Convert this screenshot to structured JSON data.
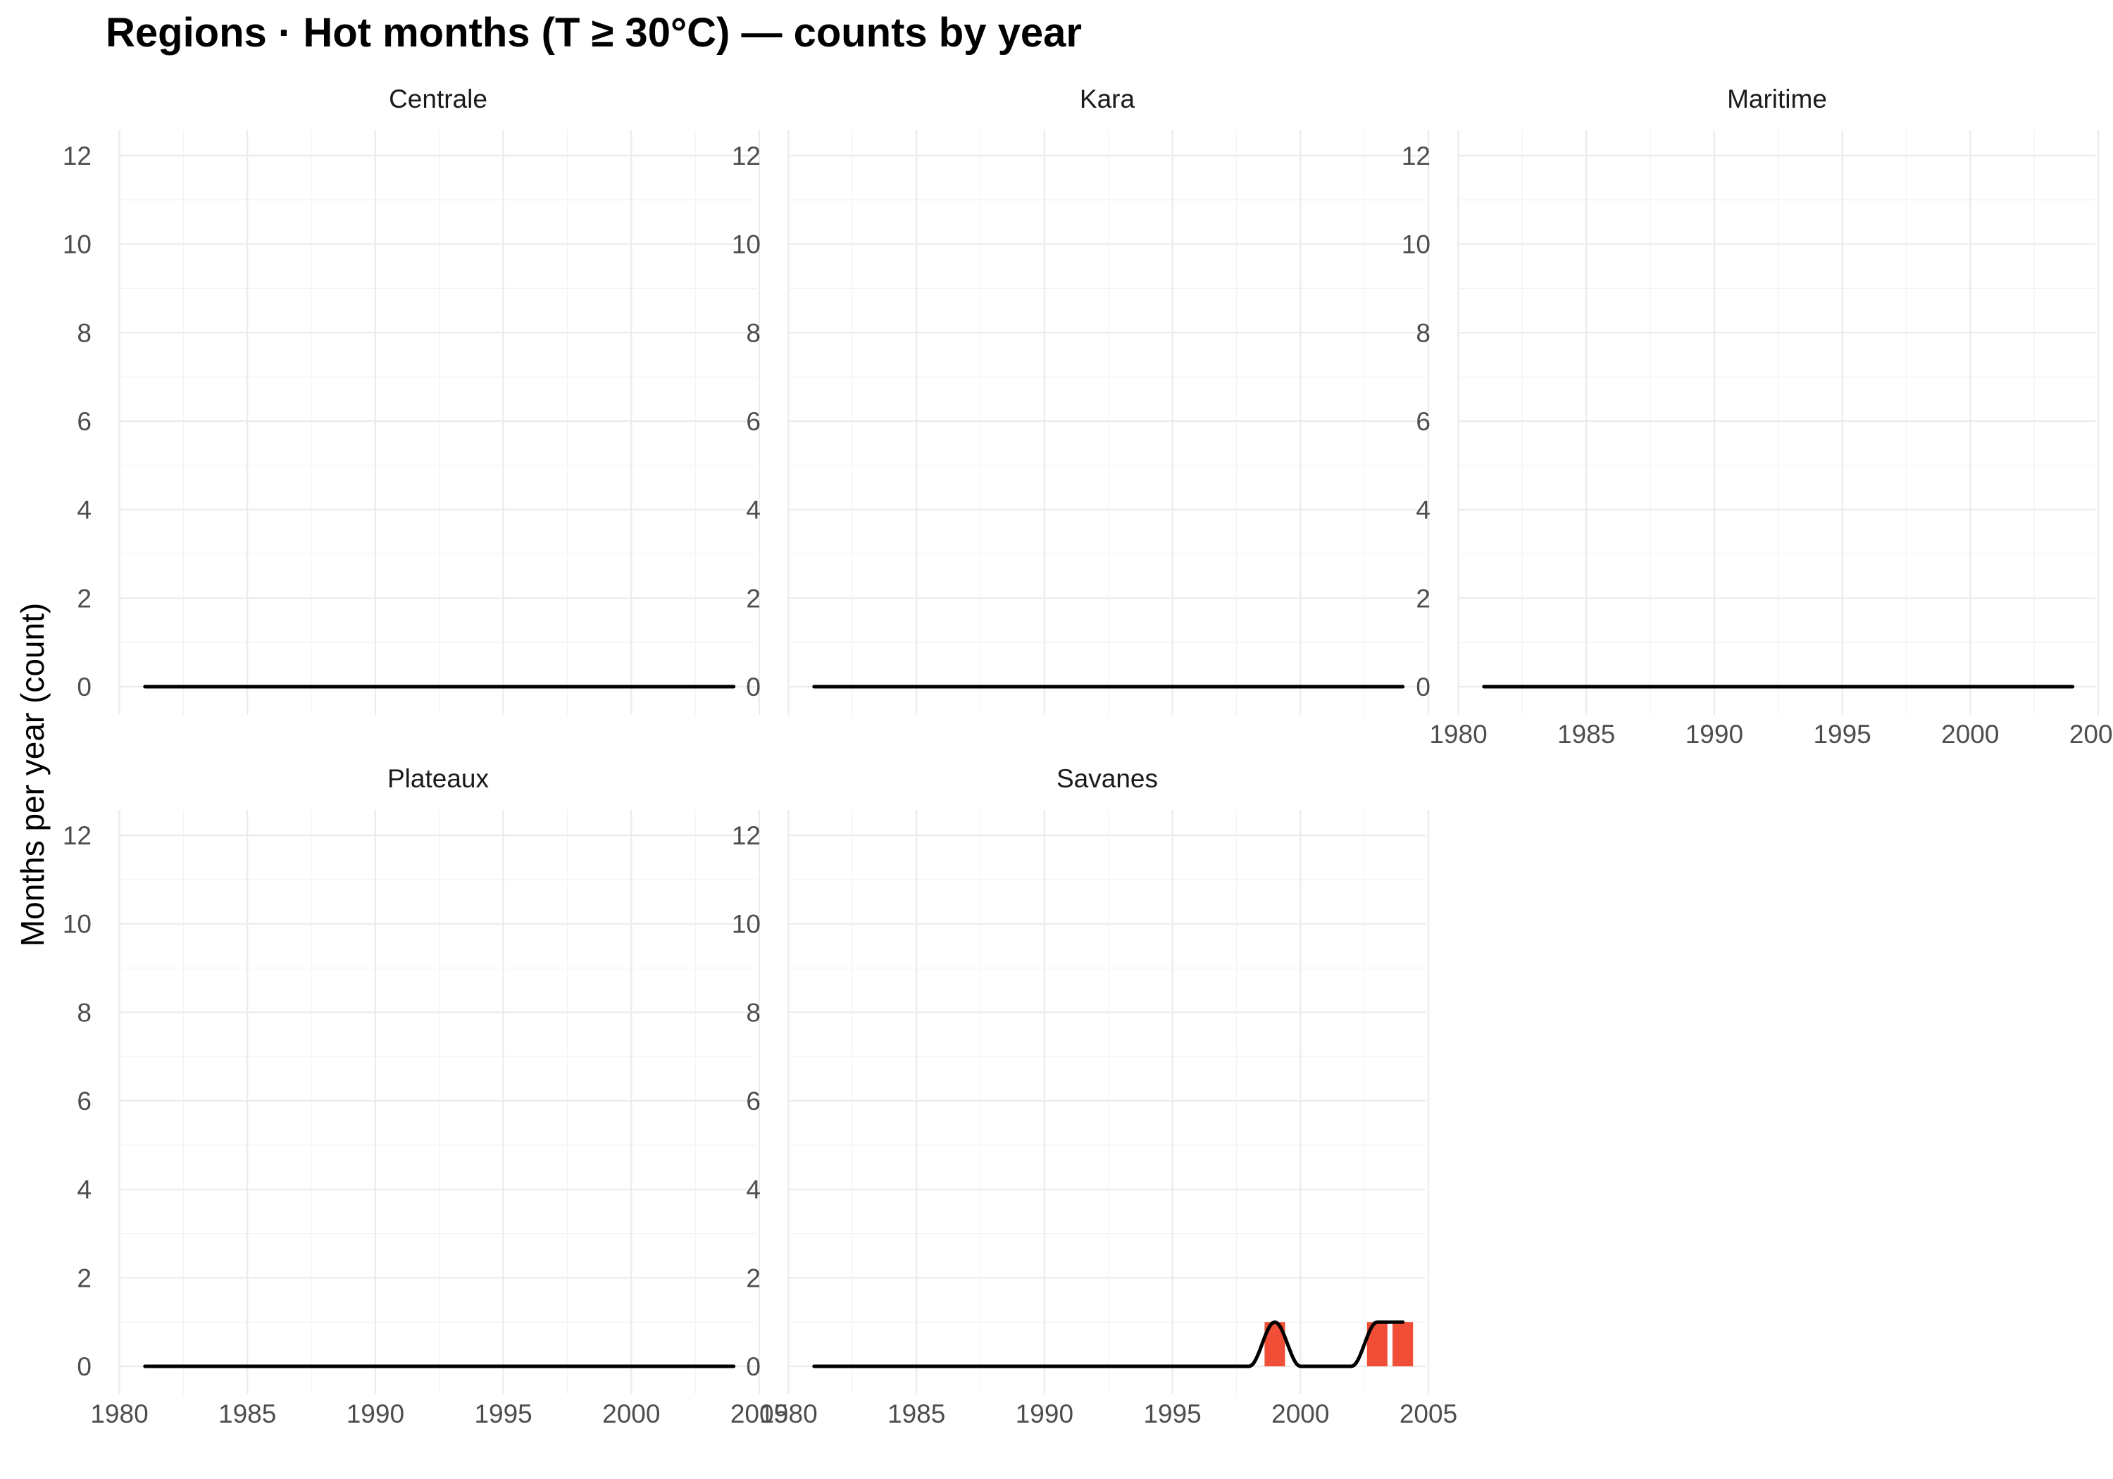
{
  "chart_data": {
    "type": "bar",
    "title": "Regions · Hot months (T ≥ 30°C) — counts by year",
    "ylabel": "Months per year (count)",
    "xlabel": "",
    "xlim": [
      1980,
      2005
    ],
    "ylim": [
      0,
      12
    ],
    "x_ticks": [
      1980,
      1985,
      1990,
      1995,
      2000,
      2005
    ],
    "y_ticks": [
      0,
      2,
      4,
      6,
      8,
      10,
      12
    ],
    "grid": true,
    "bar_color": "#f14e38",
    "trend_color": "#000000",
    "years": [
      1981,
      1982,
      1983,
      1984,
      1985,
      1986,
      1987,
      1988,
      1989,
      1990,
      1991,
      1992,
      1993,
      1994,
      1995,
      1996,
      1997,
      1998,
      1999,
      2000,
      2001,
      2002,
      2003,
      2004
    ],
    "panels": [
      {
        "name": "Centrale",
        "values": [
          0,
          0,
          0,
          0,
          0,
          0,
          0,
          0,
          0,
          0,
          0,
          0,
          0,
          0,
          0,
          0,
          0,
          0,
          0,
          0,
          0,
          0,
          0,
          0
        ]
      },
      {
        "name": "Kara",
        "values": [
          0,
          0,
          0,
          0,
          0,
          0,
          0,
          0,
          0,
          0,
          0,
          0,
          0,
          0,
          0,
          0,
          0,
          0,
          0,
          0,
          0,
          0,
          0,
          0
        ]
      },
      {
        "name": "Maritime",
        "values": [
          0,
          0,
          0,
          0,
          0,
          0,
          0,
          0,
          0,
          0,
          0,
          0,
          0,
          0,
          0,
          0,
          0,
          0,
          0,
          0,
          0,
          0,
          0,
          0
        ]
      },
      {
        "name": "Plateaux",
        "values": [
          0,
          0,
          0,
          0,
          0,
          0,
          0,
          0,
          0,
          0,
          0,
          0,
          0,
          0,
          0,
          0,
          0,
          0,
          0,
          0,
          0,
          0,
          0,
          0
        ]
      },
      {
        "name": "Savanes",
        "values": [
          0,
          0,
          0,
          0,
          0,
          0,
          0,
          0,
          0,
          0,
          0,
          0,
          0,
          0,
          0,
          0,
          0,
          0,
          1,
          0,
          0,
          0,
          1,
          1
        ]
      }
    ]
  }
}
